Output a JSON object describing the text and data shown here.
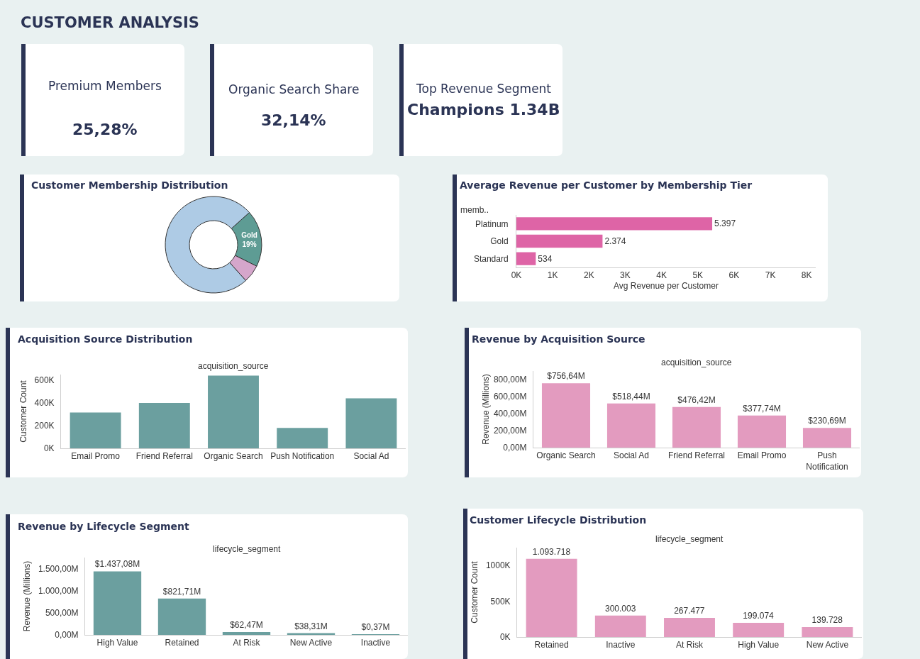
{
  "chart_data": [
    {
      "type": "other",
      "title": "CUSTOMER ANALYSIS"
    },
    {
      "type": "other",
      "title": "Premium Members",
      "annotations": [
        "25,28%"
      ]
    },
    {
      "type": "other",
      "title": "Organic Search Share",
      "annotations": [
        "32,14%"
      ]
    },
    {
      "type": "other",
      "title": "Top Revenue Segment",
      "annotations": [
        "Champions 1.34B"
      ]
    },
    {
      "type": "donut",
      "title": "Customer Membership Distribution",
      "categories": [
        "Gold",
        null,
        null
      ],
      "values": [
        19,
        6,
        75
      ],
      "colors": [
        "#5e9c94",
        "#d5a6cb",
        "#aecbe5"
      ],
      "value_labels": [
        "19%",
        null,
        null
      ]
    },
    {
      "type": "bar",
      "orientation": "horizontal",
      "title": "Average Revenue per Customer by Membership Tier",
      "ylabel": "memb..",
      "xlabel": "Avg Revenue per Customer",
      "categories": [
        "Platinum",
        "Gold",
        "Standard"
      ],
      "values": [
        5397,
        2374,
        534
      ],
      "value_labels": [
        "5.397",
        "2.374",
        "534"
      ],
      "color": "#de64a6",
      "xlim": [
        0,
        8250
      ],
      "xticks": [
        {
          "value": 0,
          "label": "0K"
        },
        {
          "value": 1000,
          "label": "1K"
        },
        {
          "value": 2000,
          "label": "2K"
        },
        {
          "value": 3000,
          "label": "3K"
        },
        {
          "value": 4000,
          "label": "4K"
        },
        {
          "value": 5000,
          "label": "5K"
        },
        {
          "value": 6000,
          "label": "6K"
        },
        {
          "value": 7000,
          "label": "7K"
        },
        {
          "value": 8000,
          "label": "8K"
        }
      ]
    },
    {
      "type": "bar",
      "title": "Acquisition Source Distribution",
      "xlabel": "acquisition_source",
      "ylabel": "Customer Count",
      "categories": [
        "Email Promo",
        "Friend Referral",
        "Organic Search",
        "Push Notification",
        "Social Ad"
      ],
      "values": [
        315000,
        400000,
        640000,
        180000,
        440000
      ],
      "color": "#6b9f9f",
      "ylim": [
        0,
        650000
      ],
      "yticks": [
        {
          "value": 0,
          "label": "0K"
        },
        {
          "value": 200000,
          "label": "200K"
        },
        {
          "value": 400000,
          "label": "400K"
        },
        {
          "value": 600000,
          "label": "600K"
        }
      ]
    },
    {
      "type": "bar",
      "title": "Revenue by Acquisition Source",
      "xlabel": "acquisition_source",
      "ylabel": "Revenue (Millions)",
      "categories": [
        "Organic Search",
        "Social Ad",
        "Friend Referral",
        "Email Promo",
        "Push Notification"
      ],
      "values": [
        756.64,
        518.44,
        476.42,
        377.74,
        230.69
      ],
      "value_labels": [
        "$756,64M",
        "$518,44M",
        "$476,42M",
        "$377,74M",
        "$230,69M"
      ],
      "color": "#e39bbf",
      "ylim": [
        0,
        900
      ],
      "yticks": [
        {
          "value": 0,
          "label": "0,00M"
        },
        {
          "value": 200,
          "label": "200,00M"
        },
        {
          "value": 400,
          "label": "400,00M"
        },
        {
          "value": 600,
          "label": "600,00M"
        },
        {
          "value": 800,
          "label": "800,00M"
        }
      ]
    },
    {
      "type": "bar",
      "title": "Revenue by Lifecycle Segment",
      "xlabel": "lifecycle_segment",
      "ylabel": "Revenue (Millions)",
      "categories": [
        "High Value",
        "Retained",
        "At Risk",
        "New Active",
        "Inactive"
      ],
      "values": [
        1437.08,
        821.71,
        62.47,
        38.31,
        0.37
      ],
      "value_labels": [
        "$1.437,08M",
        "$821,71M",
        "$62,47M",
        "$38,31M",
        "$0,37M"
      ],
      "color": "#6b9f9f",
      "ylim": [
        0,
        1750
      ],
      "yticks": [
        {
          "value": 0,
          "label": "0,00M"
        },
        {
          "value": 500,
          "label": "500,00M"
        },
        {
          "value": 1000,
          "label": "1.000,00M"
        },
        {
          "value": 1500,
          "label": "1.500,00M"
        }
      ]
    },
    {
      "type": "bar",
      "title": "Customer Lifecycle Distribution",
      "xlabel": "lifecycle_segment",
      "ylabel": "Customer Count",
      "categories": [
        "Retained",
        "Inactive",
        "At Risk",
        "High Value",
        "New Active"
      ],
      "values": [
        1093718,
        300003,
        267477,
        199074,
        139728
      ],
      "value_labels": [
        "1.093.718",
        "300.003",
        "267.477",
        "199.074",
        "139.728"
      ],
      "color": "#e39bbf",
      "ylim": [
        0,
        1250000
      ],
      "yticks": [
        {
          "value": 0,
          "label": "0K"
        },
        {
          "value": 500000,
          "label": "500K"
        },
        {
          "value": 1000000,
          "label": "1000K"
        }
      ]
    }
  ]
}
